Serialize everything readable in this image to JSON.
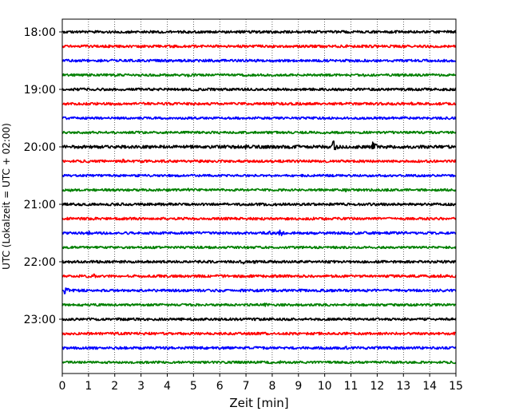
{
  "chart_data": {
    "type": "line",
    "xlabel": "Zeit  [min]",
    "ylabel": "UTC (Lokalzeit = UTC + 02:00)",
    "xlim": [
      0,
      15
    ],
    "x_ticks": [
      0,
      1,
      2,
      3,
      4,
      5,
      6,
      7,
      8,
      9,
      10,
      11,
      12,
      13,
      14,
      15
    ],
    "x_grid": "dotted",
    "y_tick_labels": [
      "18:00",
      "19:00",
      "20:00",
      "21:00",
      "22:00",
      "23:00"
    ],
    "trace_interval_minutes": 15,
    "colors": [
      "#000000",
      "#ff0000",
      "#0000ff",
      "#008000"
    ],
    "traces": [
      {
        "start": "18:00",
        "color": "#000000",
        "amplitude": 1.0,
        "events": [
          {
            "t": 0.3,
            "amp": 1.4
          }
        ]
      },
      {
        "start": "18:15",
        "color": "#ff0000",
        "amplitude": 1.0,
        "events": [
          {
            "t": 2.3,
            "amp": 1.5
          },
          {
            "t": 6.7,
            "amp": 1.4
          },
          {
            "t": 10.8,
            "amp": 1.6
          }
        ]
      },
      {
        "start": "18:30",
        "color": "#0000ff",
        "amplitude": 1.0,
        "events": [
          {
            "t": 10.3,
            "amp": 1.4
          }
        ]
      },
      {
        "start": "18:45",
        "color": "#008000",
        "amplitude": 0.9,
        "events": [
          {
            "t": 2.0,
            "amp": 1.4
          },
          {
            "t": 4.8,
            "amp": 1.4
          },
          {
            "t": 11.5,
            "amp": 1.4
          }
        ]
      },
      {
        "start": "19:00",
        "color": "#000000",
        "amplitude": 1.0,
        "events": [
          {
            "t": 3.0,
            "amp": 1.5
          }
        ]
      },
      {
        "start": "19:15",
        "color": "#ff0000",
        "amplitude": 1.0,
        "events": [
          {
            "t": 13.3,
            "amp": 1.5
          }
        ]
      },
      {
        "start": "19:30",
        "color": "#0000ff",
        "amplitude": 0.9,
        "events": [
          {
            "t": 13.0,
            "amp": 1.7
          }
        ]
      },
      {
        "start": "19:45",
        "color": "#008000",
        "amplitude": 0.9,
        "events": [
          {
            "t": 7.5,
            "amp": 1.4
          },
          {
            "t": 11.9,
            "amp": 1.6
          }
        ]
      },
      {
        "start": "20:00",
        "color": "#000000",
        "amplitude": 1.2,
        "events": [
          {
            "t": 7.0,
            "amp": 2.5
          },
          {
            "t": 10.3,
            "amp": 6.0
          },
          {
            "t": 11.8,
            "amp": 5.0
          }
        ]
      },
      {
        "start": "20:15",
        "color": "#ff0000",
        "amplitude": 1.0,
        "events": [
          {
            "t": 2.3,
            "amp": 2.2
          }
        ]
      },
      {
        "start": "20:30",
        "color": "#0000ff",
        "amplitude": 0.9,
        "events": []
      },
      {
        "start": "20:45",
        "color": "#008000",
        "amplitude": 0.9,
        "events": [
          {
            "t": 0.3,
            "amp": 1.4
          },
          {
            "t": 4.8,
            "amp": 1.6
          },
          {
            "t": 10.8,
            "amp": 1.5
          }
        ]
      },
      {
        "start": "21:00",
        "color": "#000000",
        "amplitude": 1.0,
        "events": [
          {
            "t": 8.0,
            "amp": 1.4
          }
        ]
      },
      {
        "start": "21:15",
        "color": "#ff0000",
        "amplitude": 1.0,
        "events": [
          {
            "t": 9.5,
            "amp": 1.9
          }
        ]
      },
      {
        "start": "21:30",
        "color": "#0000ff",
        "amplitude": 1.0,
        "events": [
          {
            "t": 1.0,
            "amp": 1.9
          },
          {
            "t": 7.9,
            "amp": 1.6
          },
          {
            "t": 8.3,
            "amp": 3.0
          }
        ]
      },
      {
        "start": "21:45",
        "color": "#008000",
        "amplitude": 0.9,
        "events": [
          {
            "t": 9.0,
            "amp": 1.4
          }
        ]
      },
      {
        "start": "22:00",
        "color": "#000000",
        "amplitude": 1.0,
        "events": [
          {
            "t": 6.9,
            "amp": 1.7
          },
          {
            "t": 7.3,
            "amp": 1.6
          },
          {
            "t": 13.8,
            "amp": 1.4
          }
        ]
      },
      {
        "start": "22:15",
        "color": "#ff0000",
        "amplitude": 1.0,
        "events": [
          {
            "t": 1.2,
            "amp": 2.0
          },
          {
            "t": 14.4,
            "amp": 1.6
          }
        ]
      },
      {
        "start": "22:30",
        "color": "#0000ff",
        "amplitude": 1.0,
        "events": [
          {
            "t": 0.1,
            "amp": 3.5
          },
          {
            "t": 6.0,
            "amp": 1.4
          }
        ]
      },
      {
        "start": "22:45",
        "color": "#008000",
        "amplitude": 0.9,
        "events": [
          {
            "t": 1.2,
            "amp": 1.5
          },
          {
            "t": 7.7,
            "amp": 1.9
          },
          {
            "t": 11.2,
            "amp": 1.6
          }
        ]
      },
      {
        "start": "23:00",
        "color": "#000000",
        "amplitude": 1.0,
        "events": [
          {
            "t": 4.5,
            "amp": 1.4
          },
          {
            "t": 10.5,
            "amp": 1.4
          }
        ]
      },
      {
        "start": "23:15",
        "color": "#ff0000",
        "amplitude": 1.0,
        "events": [
          {
            "t": 1.9,
            "amp": 1.5
          },
          {
            "t": 12.5,
            "amp": 1.5
          }
        ]
      },
      {
        "start": "23:30",
        "color": "#0000ff",
        "amplitude": 1.0,
        "events": [
          {
            "t": 4.0,
            "amp": 1.5
          },
          {
            "t": 5.0,
            "amp": 1.6
          },
          {
            "t": 10.8,
            "amp": 1.6
          }
        ]
      },
      {
        "start": "23:45",
        "color": "#008000",
        "amplitude": 0.9,
        "events": [
          {
            "t": 5.5,
            "amp": 1.4
          },
          {
            "t": 8.3,
            "amp": 1.4
          }
        ]
      }
    ]
  }
}
